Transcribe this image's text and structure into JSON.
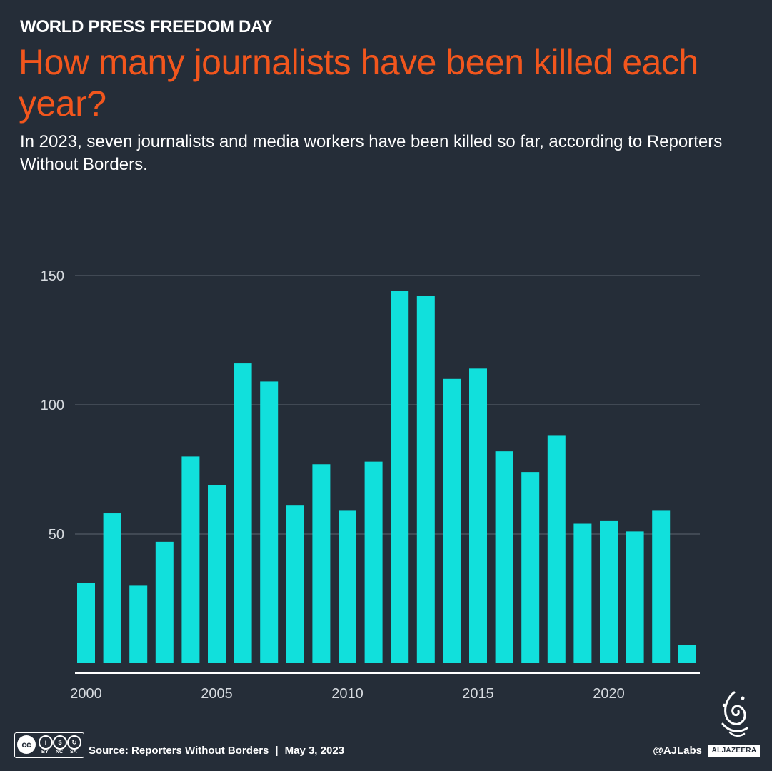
{
  "header": {
    "kicker": "WORLD PRESS FREEDOM DAY",
    "title": "How many journalists have been killed each year?",
    "subtitle": "In 2023, seven journalists and media workers have been killed so far, according to Reporters Without Borders."
  },
  "colors": {
    "background": "#252d38",
    "title": "#f2561d",
    "bar": "#11e0dc",
    "text": "#ffffff",
    "axis_label": "#d7dbe0",
    "gridline": "#5d6571"
  },
  "chart_data": {
    "type": "bar",
    "title": "How many journalists have been killed each year?",
    "xlabel": "",
    "ylabel": "",
    "ylim": [
      0,
      150
    ],
    "grid": true,
    "y_ticks": [
      50,
      100,
      150
    ],
    "x_ticks": [
      2000,
      2005,
      2010,
      2015,
      2020
    ],
    "categories": [
      2000,
      2001,
      2002,
      2003,
      2004,
      2005,
      2006,
      2007,
      2008,
      2009,
      2010,
      2011,
      2012,
      2013,
      2014,
      2015,
      2016,
      2017,
      2018,
      2019,
      2020,
      2021,
      2022,
      2023
    ],
    "values": [
      31,
      58,
      30,
      47,
      80,
      69,
      116,
      109,
      61,
      77,
      59,
      78,
      144,
      142,
      110,
      114,
      82,
      74,
      88,
      54,
      55,
      51,
      59,
      7
    ]
  },
  "footer": {
    "license_icon": "creative-commons-by-nc-sa-icon",
    "license_labels": {
      "cc": "cc",
      "by": "BY",
      "nc": "NC",
      "sa": "SA"
    },
    "source": "Source: Reporters Without Borders",
    "separator": "|",
    "date": "May 3, 2023",
    "handle": "@AJLabs",
    "brand": "ALJAZEERA"
  }
}
